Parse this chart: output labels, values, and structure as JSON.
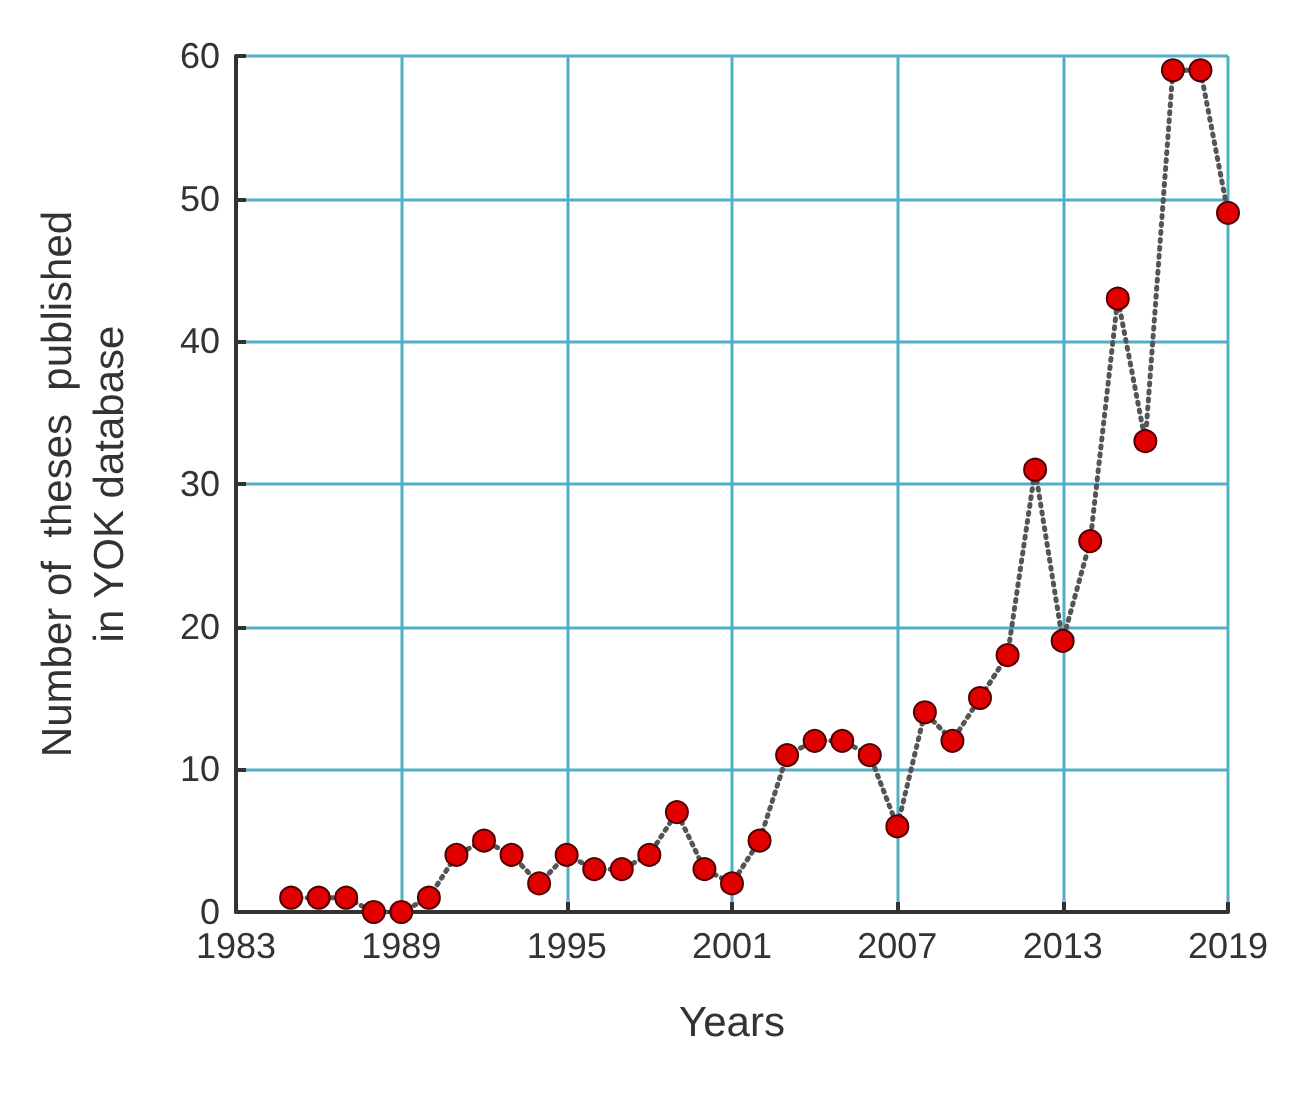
{
  "chart_data": {
    "type": "line",
    "xlabel": "Years",
    "ylabel": "Number of  theses  published\nin YOK database",
    "x": [
      1985,
      1986,
      1987,
      1988,
      1989,
      1990,
      1991,
      1992,
      1993,
      1994,
      1995,
      1996,
      1997,
      1998,
      1999,
      2000,
      2001,
      2002,
      2003,
      2004,
      2005,
      2006,
      2007,
      2008,
      2009,
      2010,
      2011,
      2012,
      2013,
      2014,
      2015,
      2016,
      2017,
      2018,
      2019
    ],
    "series": [
      {
        "color": "#e00000",
        "values": [
          1,
          1,
          1,
          0,
          0,
          1,
          4,
          5,
          4,
          2,
          4,
          3,
          3,
          4,
          7,
          3,
          2,
          5,
          11,
          12,
          12,
          11,
          6,
          14,
          12,
          15,
          18,
          31,
          19,
          26,
          43,
          33,
          59,
          59,
          49
        ]
      }
    ],
    "xlim": [
      1983,
      2019
    ],
    "xticks": [
      1983,
      1989,
      1995,
      2001,
      2007,
      2013,
      2019
    ],
    "ylim": [
      0,
      60
    ],
    "yticks": [
      0,
      10,
      20,
      30,
      40,
      50,
      60
    ],
    "grid": true,
    "marker": "circle",
    "line_style": "dotted"
  }
}
